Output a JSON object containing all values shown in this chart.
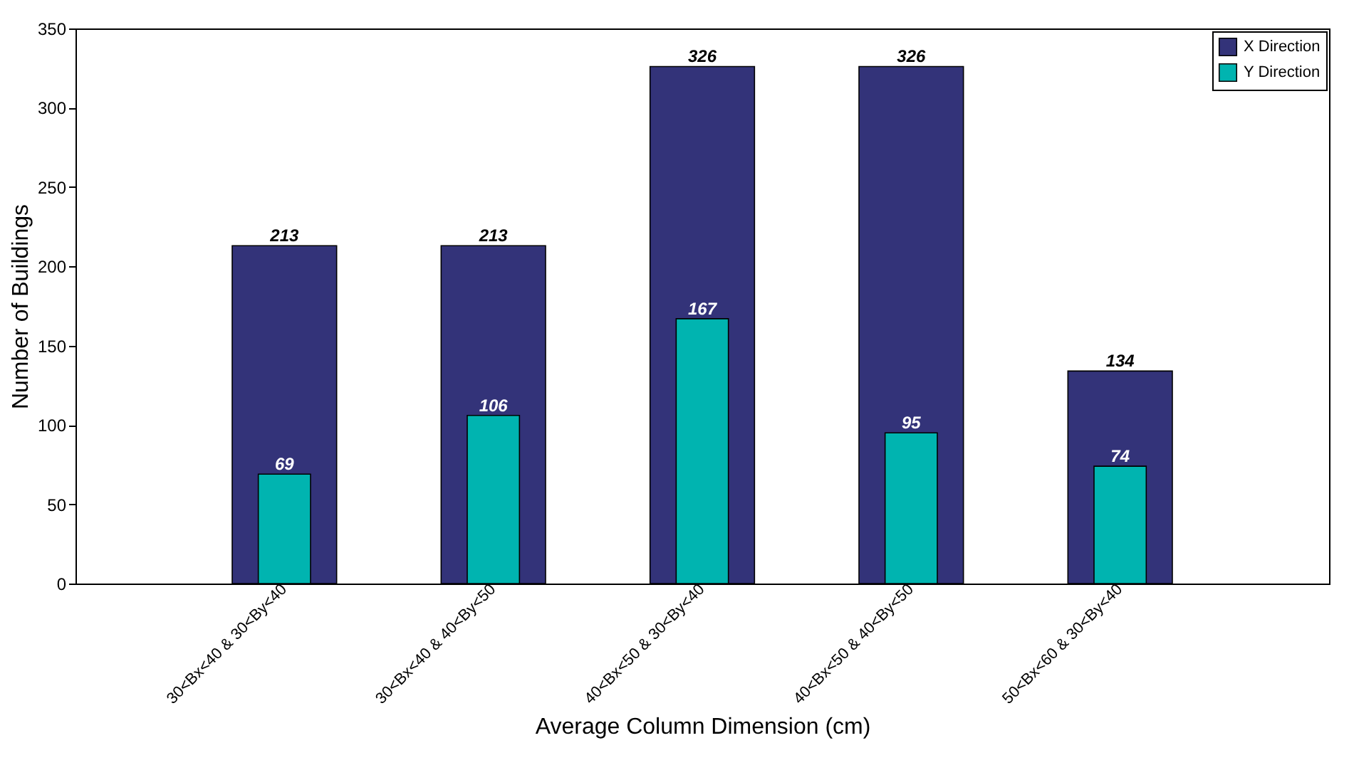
{
  "chart_data": {
    "type": "bar",
    "xlabel": "Average Column Dimension (cm)",
    "ylabel": "Number of Buildings",
    "categories": [
      "30<Bx<40 & 30<By<40",
      "30<Bx<40 & 40<By<50",
      "40<Bx<50 & 30<By<40",
      "40<Bx<50 & 40<By<50",
      "50<Bx<60 & 30<By<40"
    ],
    "series": [
      {
        "name": "X Direction",
        "color": "#333379",
        "values": [
          213,
          213,
          326,
          326,
          134
        ]
      },
      {
        "name": "Y Direction",
        "color": "#00b4b0",
        "values": [
          69,
          106,
          167,
          95,
          74
        ]
      }
    ],
    "ylim": [
      0,
      350
    ],
    "yticks": [
      0,
      50,
      100,
      150,
      200,
      250,
      300,
      350
    ],
    "data_labels": true,
    "legend": "top right"
  }
}
